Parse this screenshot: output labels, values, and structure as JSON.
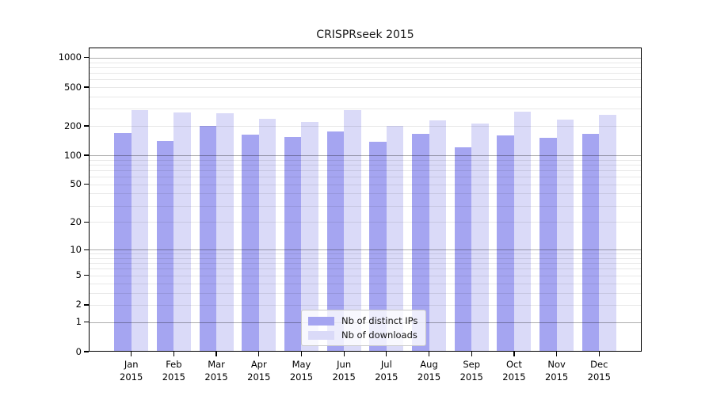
{
  "chart_data": {
    "type": "bar",
    "title": "CRISPRseek 2015",
    "categories": [
      "Jan 2015",
      "Feb 2015",
      "Mar 2015",
      "Apr 2015",
      "May 2015",
      "Jun 2015",
      "Jul 2015",
      "Aug 2015",
      "Sep 2015",
      "Oct 2015",
      "Nov 2015",
      "Dec 2015"
    ],
    "series": [
      {
        "name": "Nb of distinct IPs",
        "color": "#a5a5f1",
        "values": [
          168,
          141,
          200,
          162,
          154,
          175,
          139,
          167,
          120,
          161,
          151,
          166
        ]
      },
      {
        "name": "Nb of downloads",
        "color": "#dadaf8",
        "values": [
          292,
          273,
          272,
          238,
          222,
          292,
          200,
          229,
          210,
          282,
          234,
          258
        ]
      }
    ],
    "yticks": [
      0,
      1,
      2,
      5,
      10,
      20,
      50,
      100,
      200,
      500,
      1000
    ],
    "ylim": [
      0,
      1000
    ],
    "yscale": "log10(value+1)",
    "xlabel": "",
    "ylabel": "",
    "grid": {
      "on": true,
      "major_lines": [
        1,
        10,
        100,
        1000
      ],
      "minor_multiples": [
        2,
        3,
        4,
        5,
        6,
        7,
        8,
        9
      ]
    },
    "legend": {
      "position": "lower-center",
      "entries": [
        "Nb of distinct IPs",
        "Nb of downloads"
      ]
    }
  },
  "colors": {
    "bar_distinct_ips": "#a5a5f1",
    "bar_downloads": "#dadaf8",
    "major_grid": "rgba(0,0,0,0.32)",
    "minor_grid": "rgba(0,0,0,0.09)",
    "spine": "#000000"
  }
}
